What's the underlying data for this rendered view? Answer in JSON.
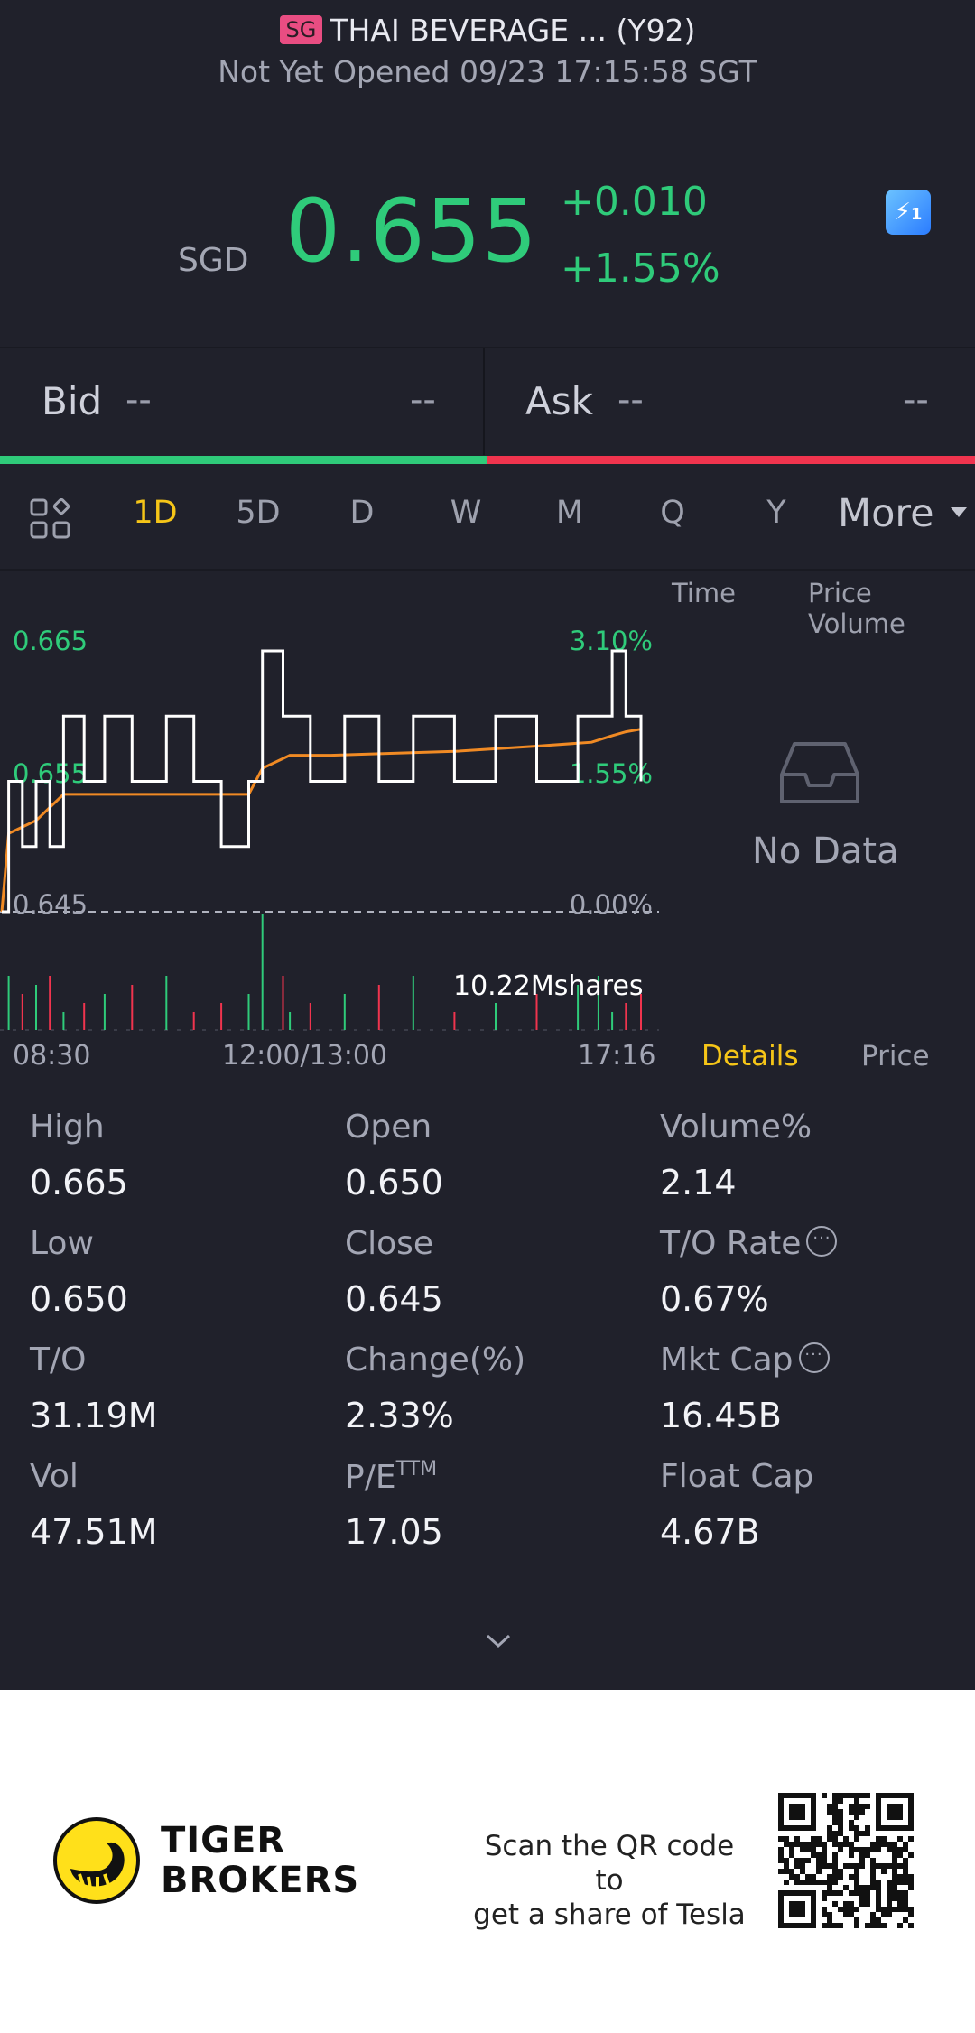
{
  "header": {
    "exchange_badge": "SG",
    "title": "THAI BEVERAGE ... (Y92)",
    "status": "Not Yet Opened 09/23 17:15:58 SGT"
  },
  "quote": {
    "currency": "SGD",
    "price": "0.655",
    "change": "+0.010",
    "change_pct": "+1.55%",
    "up_color": "#2fcb7a",
    "flash_badge": "1"
  },
  "orderbook": {
    "bid_label": "Bid",
    "bid_price": "--",
    "bid_size": "--",
    "ask_label": "Ask",
    "ask_price": "--",
    "ask_size": "--",
    "bid_ratio": 0.5
  },
  "tabs": [
    "1D",
    "5D",
    "D",
    "W",
    "M",
    "Q",
    "Y"
  ],
  "active_tab": "1D",
  "more_label": "More",
  "side_panel": {
    "time_tab": "Time",
    "price_volume_tab": "Price Volume",
    "empty_text": "No Data"
  },
  "chart_data": {
    "type": "line",
    "y_left_ticks": [
      "0.665",
      "0.655",
      "0.645"
    ],
    "y_right_ticks": [
      "3.10%",
      "1.55%",
      "0.00%"
    ],
    "prev_close": 0.645,
    "x_ticks": [
      "08:30",
      "12:00/13:00",
      "17:16"
    ],
    "volume_label": "10.22Mshares",
    "series": [
      {
        "x": [
          "08:30",
          "08:35",
          "08:45",
          "08:55",
          "09:05",
          "09:15",
          "09:30",
          "09:45",
          "10:05",
          "10:30",
          "10:50",
          "11:10",
          "11:30",
          "11:40",
          "11:55",
          "13:00",
          "13:15",
          "13:40",
          "14:05",
          "14:30",
          "15:00",
          "15:30",
          "16:00",
          "16:30",
          "16:45",
          "16:55",
          "17:05",
          "17:16"
        ],
        "values": [
          0.645,
          0.655,
          0.65,
          0.655,
          0.65,
          0.66,
          0.655,
          0.66,
          0.655,
          0.66,
          0.655,
          0.65,
          0.655,
          0.665,
          0.66,
          0.66,
          0.655,
          0.66,
          0.655,
          0.66,
          0.655,
          0.66,
          0.655,
          0.66,
          0.66,
          0.665,
          0.66,
          0.655
        ]
      },
      {
        "x": [
          "08:30",
          "08:35",
          "08:55",
          "09:15",
          "09:45",
          "10:30",
          "11:30",
          "11:40",
          "12:00",
          "13:30",
          "15:00",
          "16:00",
          "16:40",
          "16:55",
          "17:05",
          "17:16"
        ],
        "values": [
          0.645,
          0.651,
          0.652,
          0.654,
          0.654,
          0.654,
          0.654,
          0.656,
          0.657,
          0.657,
          0.6573,
          0.6577,
          0.658,
          0.6585,
          0.6588,
          0.659
        ]
      }
    ],
    "volume_colors": {
      "up": "#2fcb7a",
      "down": "#f0344e"
    }
  },
  "detail_tabs": {
    "details": "Details",
    "price": "Price"
  },
  "stats": [
    {
      "label": "High",
      "value": "0.665"
    },
    {
      "label": "Open",
      "value": "0.650"
    },
    {
      "label": "Volume%",
      "value": "2.14"
    },
    {
      "label": "Low",
      "value": "0.650"
    },
    {
      "label": "Close",
      "value": "0.645"
    },
    {
      "label": "T/O Rate",
      "value": "0.67%"
    },
    {
      "label": "T/O",
      "value": "31.19M"
    },
    {
      "label": "Change(%)",
      "value": "2.33%"
    },
    {
      "label": "Mkt Cap",
      "value": "16.45B"
    },
    {
      "label": "Vol",
      "value": "47.51M"
    },
    {
      "label": "P/E",
      "label_sup": "TTM",
      "value": "17.05"
    },
    {
      "label": "Float Cap",
      "value": "4.67B"
    }
  ],
  "footer": {
    "brand_line1": "TIGER",
    "brand_line2": "BROKERS",
    "scan_line1": "Scan the QR code to",
    "scan_line2": "get a share of Tesla"
  }
}
